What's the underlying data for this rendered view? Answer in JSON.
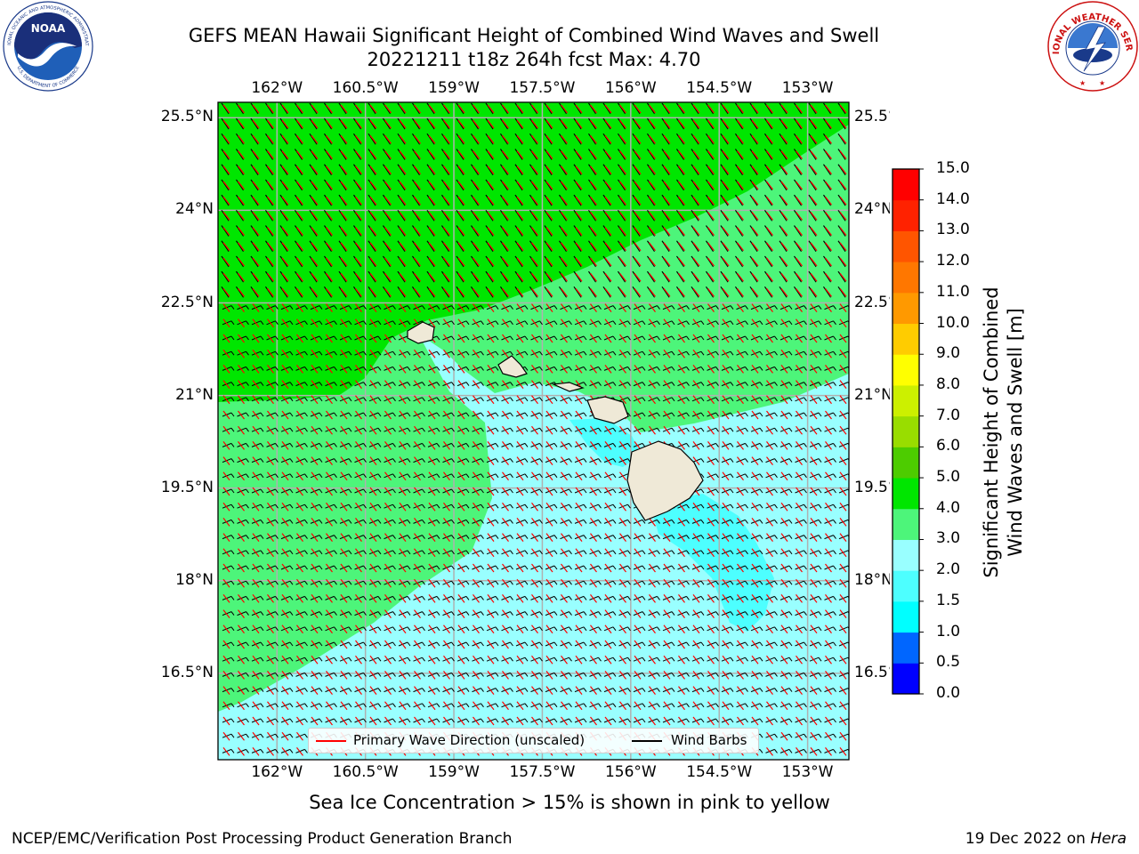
{
  "header": {
    "title_line1": "GEFS MEAN Hawaii Significant Height of Combined Wind Waves and Swell",
    "title_line2": "20221211 t18z 264h fcst   Max: 4.70"
  },
  "map": {
    "lon_ticks": [
      "162°W",
      "160.5°W",
      "159°W",
      "157.5°W",
      "156°W",
      "154.5°W",
      "153°W"
    ],
    "lat_ticks": [
      "25.5°N",
      "24°N",
      "22.5°N",
      "21°N",
      "19.5°N",
      "18°N",
      "16.5°N"
    ],
    "lon_values": [
      -162,
      -160.5,
      -159,
      -157.5,
      -156,
      -154.5,
      -153
    ],
    "lat_values": [
      25.5,
      24,
      22.5,
      21,
      19.5,
      18,
      16.5
    ],
    "extent": {
      "lon_min": -163.0,
      "lon_max": -152.3,
      "lat_min": 15.1,
      "lat_max": 25.75
    },
    "legend": {
      "wave_direction": "Primary Wave Direction (unscaled)",
      "wind_barbs": "Wind Barbs",
      "wave_color": "#ff0000",
      "barb_color": "#000000"
    },
    "field_colors": {
      "band_3_4": "#4df57a",
      "band_4_5": "#00e600",
      "band_2_3": "#99ffff",
      "band_1_5_2": "#4dffff",
      "land": "#efe9d7"
    }
  },
  "colorbar": {
    "label_line1": "Significant Height of Combined",
    "label_line2": "Wind Waves and Swell [m]",
    "ticks": [
      "0.0",
      "0.5",
      "1.0",
      "1.5",
      "2.0",
      "3.0",
      "4.0",
      "5.0",
      "6.0",
      "7.0",
      "8.0",
      "9.0",
      "10.0",
      "11.0",
      "12.0",
      "13.0",
      "14.0",
      "15.0"
    ],
    "colors": [
      "#0000ff",
      "#0066ff",
      "#00ffff",
      "#4dffff",
      "#99ffff",
      "#4df57a",
      "#00e600",
      "#4dcc00",
      "#99dd00",
      "#ccf000",
      "#ffff00",
      "#ffcc00",
      "#ff9900",
      "#ff7700",
      "#ff5500",
      "#ff2200",
      "#ff0000"
    ]
  },
  "note": "Sea Ice Concentration > 15% is shown in pink to yellow",
  "footer": {
    "left": "NCEP/EMC/Verification Post Processing Product Generation Branch",
    "right_prefix": "19 Dec 2022 on ",
    "right_host": "Hera"
  },
  "logos": {
    "noaa_text": "NOAA",
    "noaa_ring": "NATIONAL OCEANIC AND ATMOSPHERIC ADMINISTRATION",
    "noaa_ring_bottom": "U.S. DEPARTMENT OF COMMERCE",
    "nws_ring": "NATIONAL WEATHER SERVICE"
  }
}
